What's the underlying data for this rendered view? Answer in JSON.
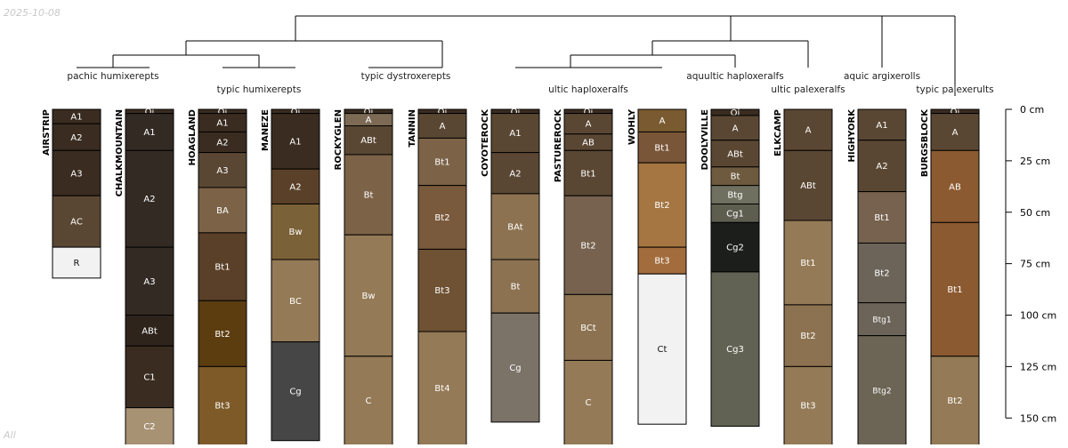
{
  "date_label": "2025-10-08",
  "corner_label": "All",
  "depth_axis": {
    "unit": "cm",
    "max": 150,
    "ticks": [
      "0 cm",
      "25 cm",
      "50 cm",
      "75 cm",
      "100 cm",
      "125 cm",
      "150 cm"
    ],
    "tick_values": [
      0,
      25,
      50,
      75,
      100,
      125,
      150
    ]
  },
  "subgroup_labels": [
    "pachic humixerepts",
    "typic humixerepts",
    "typic dystroxerepts",
    "ultic haploxeralfs",
    "aquultic haploxeralfs",
    "ultic palexeralfs",
    "aquic argixerolls",
    "typic palexerults"
  ],
  "profiles": [
    {
      "name": "AIRSTRIP",
      "horizons": [
        {
          "name": "A1",
          "top": 0,
          "bottom": 7,
          "color": "#3a2c20"
        },
        {
          "name": "A2",
          "top": 7,
          "bottom": 20,
          "color": "#3a2c20"
        },
        {
          "name": "A3",
          "top": 20,
          "bottom": 42,
          "color": "#3a2c20"
        },
        {
          "name": "AC",
          "top": 42,
          "bottom": 67,
          "color": "#5a4733"
        },
        {
          "name": "R",
          "top": 67,
          "bottom": 82,
          "color": "#f2f2f2"
        }
      ]
    },
    {
      "name": "CHALKMOUNTAIN",
      "horizons": [
        {
          "name": "Oi",
          "top": 0,
          "bottom": 2,
          "color": "#3a2c20"
        },
        {
          "name": "A1",
          "top": 2,
          "bottom": 20,
          "color": "#332a24"
        },
        {
          "name": "A2",
          "top": 20,
          "bottom": 67,
          "color": "#332a24"
        },
        {
          "name": "A3",
          "top": 67,
          "bottom": 100,
          "color": "#332a24"
        },
        {
          "name": "ABt",
          "top": 100,
          "bottom": 115,
          "color": "#2e241c"
        },
        {
          "name": "C1",
          "top": 115,
          "bottom": 145,
          "color": "#3a2c20"
        },
        {
          "name": "C2",
          "top": 145,
          "bottom": 165,
          "color": "#a89274"
        }
      ]
    },
    {
      "name": "HOAGLAND",
      "horizons": [
        {
          "name": "Oi",
          "top": 0,
          "bottom": 2,
          "color": "#3a2c20"
        },
        {
          "name": "A1",
          "top": 2,
          "bottom": 11,
          "color": "#3a2c20"
        },
        {
          "name": "A2",
          "top": 11,
          "bottom": 21,
          "color": "#3a2c20"
        },
        {
          "name": "A3",
          "top": 21,
          "bottom": 38,
          "color": "#5a4733"
        },
        {
          "name": "BA",
          "top": 38,
          "bottom": 60,
          "color": "#7c6348"
        },
        {
          "name": "Bt1",
          "top": 60,
          "bottom": 93,
          "color": "#5a4028"
        },
        {
          "name": "Bt2",
          "top": 93,
          "bottom": 125,
          "color": "#5c3d10"
        },
        {
          "name": "Bt3",
          "top": 125,
          "bottom": 165,
          "color": "#7d5a28"
        }
      ]
    },
    {
      "name": "MANEZE",
      "horizons": [
        {
          "name": "Oi",
          "top": 0,
          "bottom": 2,
          "color": "#3a2c20"
        },
        {
          "name": "A1",
          "top": 2,
          "bottom": 29,
          "color": "#3a2c20"
        },
        {
          "name": "A2",
          "top": 29,
          "bottom": 46,
          "color": "#5a4028"
        },
        {
          "name": "Bw",
          "top": 46,
          "bottom": 73,
          "color": "#7b6137"
        },
        {
          "name": "BC",
          "top": 73,
          "bottom": 113,
          "color": "#947a56"
        },
        {
          "name": "Cg",
          "top": 113,
          "bottom": 161,
          "color": "#464646"
        }
      ]
    },
    {
      "name": "ROCKYGLEN",
      "horizons": [
        {
          "name": "Oi",
          "top": 0,
          "bottom": 2,
          "color": "#3a2c20"
        },
        {
          "name": "A",
          "top": 2,
          "bottom": 8,
          "color": "#7d6a55"
        },
        {
          "name": "ABt",
          "top": 8,
          "bottom": 22,
          "color": "#5a4733"
        },
        {
          "name": "Bt",
          "top": 22,
          "bottom": 61,
          "color": "#7c6348"
        },
        {
          "name": "Bw",
          "top": 61,
          "bottom": 120,
          "color": "#947a56"
        },
        {
          "name": "C",
          "top": 120,
          "bottom": 165,
          "color": "#947a56"
        }
      ]
    },
    {
      "name": "TANNIN",
      "horizons": [
        {
          "name": "Oi",
          "top": 0,
          "bottom": 2,
          "color": "#3a2c20"
        },
        {
          "name": "A",
          "top": 2,
          "bottom": 14,
          "color": "#5a4733"
        },
        {
          "name": "Bt1",
          "top": 14,
          "bottom": 37,
          "color": "#7c6348"
        },
        {
          "name": "Bt2",
          "top": 37,
          "bottom": 68,
          "color": "#7a5a3c"
        },
        {
          "name": "Bt3",
          "top": 68,
          "bottom": 108,
          "color": "#6e5233"
        },
        {
          "name": "Bt4",
          "top": 108,
          "bottom": 165,
          "color": "#947a56"
        }
      ]
    },
    {
      "name": "COYOTEROCK",
      "horizons": [
        {
          "name": "Oi",
          "top": 0,
          "bottom": 2,
          "color": "#3a2c20"
        },
        {
          "name": "A1",
          "top": 2,
          "bottom": 21,
          "color": "#5a4733"
        },
        {
          "name": "A2",
          "top": 21,
          "bottom": 41,
          "color": "#5a4733"
        },
        {
          "name": "BAt",
          "top": 41,
          "bottom": 73,
          "color": "#8c7250"
        },
        {
          "name": "Bt",
          "top": 73,
          "bottom": 99,
          "color": "#8c7250"
        },
        {
          "name": "Cg",
          "top": 99,
          "bottom": 152,
          "color": "#7b7268"
        }
      ]
    },
    {
      "name": "PASTUREROCK",
      "horizons": [
        {
          "name": "Oi",
          "top": 0,
          "bottom": 2,
          "color": "#3a2c20"
        },
        {
          "name": "A",
          "top": 2,
          "bottom": 12,
          "color": "#5a4733"
        },
        {
          "name": "AB",
          "top": 12,
          "bottom": 20,
          "color": "#5a4733"
        },
        {
          "name": "Bt1",
          "top": 20,
          "bottom": 42,
          "color": "#5a4733"
        },
        {
          "name": "Bt2",
          "top": 42,
          "bottom": 90,
          "color": "#76624e"
        },
        {
          "name": "BCt",
          "top": 90,
          "bottom": 122,
          "color": "#8c7250"
        },
        {
          "name": "C",
          "top": 122,
          "bottom": 165,
          "color": "#947a56"
        }
      ]
    },
    {
      "name": "WOHLY",
      "horizons": [
        {
          "name": "A",
          "top": 0,
          "bottom": 11,
          "color": "#7a5a30"
        },
        {
          "name": "Bt1",
          "top": 11,
          "bottom": 26,
          "color": "#7a5638"
        },
        {
          "name": "Bt2",
          "top": 26,
          "bottom": 67,
          "color": "#a57642"
        },
        {
          "name": "Bt3",
          "top": 67,
          "bottom": 80,
          "color": "#a26c3c"
        },
        {
          "name": "Ct",
          "top": 80,
          "bottom": 153,
          "color": "#f2f2f2"
        }
      ]
    },
    {
      "name": "DOOLYVILLE",
      "horizons": [
        {
          "name": "Oi",
          "top": 0,
          "bottom": 3,
          "color": "#3a2c20"
        },
        {
          "name": "A",
          "top": 3,
          "bottom": 15,
          "color": "#5a4733"
        },
        {
          "name": "ABt",
          "top": 15,
          "bottom": 28,
          "color": "#5a4733"
        },
        {
          "name": "Bt",
          "top": 28,
          "bottom": 37,
          "color": "#6e5a3e"
        },
        {
          "name": "Btg",
          "top": 37,
          "bottom": 46,
          "color": "#707060"
        },
        {
          "name": "Cg1",
          "top": 46,
          "bottom": 55,
          "color": "#5e5e50"
        },
        {
          "name": "Cg2",
          "top": 55,
          "bottom": 79,
          "color": "#1c1e1b"
        },
        {
          "name": "Cg3",
          "top": 79,
          "bottom": 154,
          "color": "#626254"
        }
      ]
    },
    {
      "name": "ELKCAMP",
      "horizons": [
        {
          "name": "A",
          "top": 0,
          "bottom": 20,
          "color": "#5a4733"
        },
        {
          "name": "ABt",
          "top": 20,
          "bottom": 54,
          "color": "#5a4733"
        },
        {
          "name": "Bt1",
          "top": 54,
          "bottom": 95,
          "color": "#947a56"
        },
        {
          "name": "Bt2",
          "top": 95,
          "bottom": 125,
          "color": "#8c7250"
        },
        {
          "name": "Bt3",
          "top": 125,
          "bottom": 165,
          "color": "#947a56"
        }
      ]
    },
    {
      "name": "HIGHYORK",
      "horizons": [
        {
          "name": "A1",
          "top": 0,
          "bottom": 15,
          "color": "#5a4733"
        },
        {
          "name": "A2",
          "top": 15,
          "bottom": 40,
          "color": "#5a4733"
        },
        {
          "name": "Bt1",
          "top": 40,
          "bottom": 65,
          "color": "#76624e"
        },
        {
          "name": "Bt2",
          "top": 65,
          "bottom": 94,
          "color": "#6c6458"
        },
        {
          "name": "Btg1",
          "top": 94,
          "bottom": 110,
          "color": "#6c6458"
        },
        {
          "name": "Btg2",
          "top": 110,
          "bottom": 165,
          "color": "#6c6454"
        }
      ]
    },
    {
      "name": "BURGSBLOCK",
      "horizons": [
        {
          "name": "Oi",
          "top": 0,
          "bottom": 2,
          "color": "#3a2c20"
        },
        {
          "name": "A",
          "top": 2,
          "bottom": 20,
          "color": "#5a4733"
        },
        {
          "name": "AB",
          "top": 20,
          "bottom": 55,
          "color": "#8c5a30"
        },
        {
          "name": "Bt1",
          "top": 55,
          "bottom": 120,
          "color": "#8c5a30"
        },
        {
          "name": "Bt2",
          "top": 120,
          "bottom": 165,
          "color": "#947a56"
        }
      ]
    }
  ]
}
